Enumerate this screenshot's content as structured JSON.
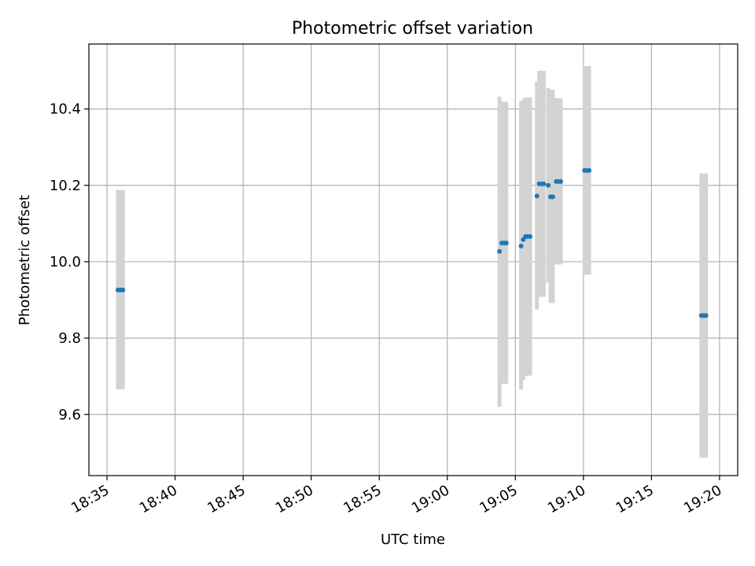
{
  "chart_data": {
    "type": "scatter",
    "title": "Photometric offset variation",
    "xlabel": "UTC time",
    "ylabel": "Photometric offset",
    "x_axis_kind": "time",
    "xlim": [
      "18:33:40",
      "19:21:20"
    ],
    "ylim": [
      9.44,
      10.57
    ],
    "x_ticks": [
      "18:35",
      "18:40",
      "18:45",
      "18:50",
      "18:55",
      "19:00",
      "19:05",
      "19:10",
      "19:15",
      "19:20"
    ],
    "y_ticks": [
      9.6,
      9.8,
      10.0,
      10.2,
      10.4
    ],
    "grid": true,
    "legend": "none",
    "colors": {
      "point": "#1f77b4",
      "errorbar": "#d3d3d3",
      "grid": "#b0b0b0"
    },
    "series": [
      {
        "points": [
          {
            "x": "18:35:48",
            "y": 9.926,
            "err_low": 9.666,
            "err_high": 10.188
          },
          {
            "x": "18:36:00",
            "y": 9.926,
            "err_low": 9.666,
            "err_high": 10.188
          },
          {
            "x": "18:36:10",
            "y": 9.926,
            "err_low": 9.666,
            "err_high": 10.188
          },
          {
            "x": "19:03:50",
            "y": 10.027,
            "err_low": 9.62,
            "err_high": 10.432
          },
          {
            "x": "19:04:00",
            "y": 10.049,
            "err_low": 9.68,
            "err_high": 10.419
          },
          {
            "x": "19:04:10",
            "y": 10.049,
            "err_low": 9.68,
            "err_high": 10.419
          },
          {
            "x": "19:04:20",
            "y": 10.049,
            "err_low": 9.68,
            "err_high": 10.419
          },
          {
            "x": "19:05:25",
            "y": 10.041,
            "err_low": 9.665,
            "err_high": 10.42
          },
          {
            "x": "19:05:35",
            "y": 10.058,
            "err_low": 9.69,
            "err_high": 10.425
          },
          {
            "x": "19:05:45",
            "y": 10.066,
            "err_low": 9.7,
            "err_high": 10.43
          },
          {
            "x": "19:05:55",
            "y": 10.066,
            "err_low": 9.702,
            "err_high": 10.43
          },
          {
            "x": "19:06:05",
            "y": 10.066,
            "err_low": 9.702,
            "err_high": 10.43
          },
          {
            "x": "19:06:35",
            "y": 10.172,
            "err_low": 9.875,
            "err_high": 10.472
          },
          {
            "x": "19:06:45",
            "y": 10.204,
            "err_low": 9.908,
            "err_high": 10.5
          },
          {
            "x": "19:06:55",
            "y": 10.204,
            "err_low": 9.908,
            "err_high": 10.5
          },
          {
            "x": "19:07:05",
            "y": 10.204,
            "err_low": 9.908,
            "err_high": 10.5
          },
          {
            "x": "19:07:25",
            "y": 10.2,
            "err_low": 9.945,
            "err_high": 10.455
          },
          {
            "x": "19:07:35",
            "y": 10.17,
            "err_low": 9.892,
            "err_high": 10.45
          },
          {
            "x": "19:07:45",
            "y": 10.17,
            "err_low": 9.892,
            "err_high": 10.45
          },
          {
            "x": "19:08:00",
            "y": 10.21,
            "err_low": 9.993,
            "err_high": 10.428
          },
          {
            "x": "19:08:10",
            "y": 10.21,
            "err_low": 9.993,
            "err_high": 10.428
          },
          {
            "x": "19:08:20",
            "y": 10.21,
            "err_low": 9.993,
            "err_high": 10.428
          },
          {
            "x": "19:10:05",
            "y": 10.239,
            "err_low": 9.966,
            "err_high": 10.512
          },
          {
            "x": "19:10:15",
            "y": 10.239,
            "err_low": 9.966,
            "err_high": 10.512
          },
          {
            "x": "19:10:25",
            "y": 10.239,
            "err_low": 9.966,
            "err_high": 10.512
          },
          {
            "x": "19:18:40",
            "y": 9.859,
            "err_low": 9.487,
            "err_high": 10.231
          },
          {
            "x": "19:18:50",
            "y": 9.859,
            "err_low": 9.487,
            "err_high": 10.231
          },
          {
            "x": "19:19:00",
            "y": 9.859,
            "err_low": 9.487,
            "err_high": 10.231
          }
        ]
      }
    ]
  }
}
